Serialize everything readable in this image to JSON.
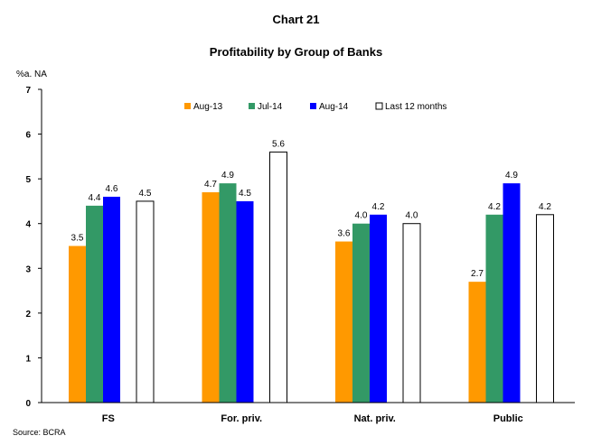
{
  "title": "Chart 21",
  "subtitle": "Profitability by Group of Banks",
  "unit_label": "%a. NA",
  "source": "Source: BCRA",
  "chart_data": {
    "type": "bar",
    "categories": [
      "FS",
      "For. priv.",
      "Nat. priv.",
      "Public"
    ],
    "series": [
      {
        "name": "Aug-13",
        "color": "#ff9900",
        "values": [
          3.5,
          4.7,
          3.6,
          2.7
        ]
      },
      {
        "name": "Jul-14",
        "color": "#339966",
        "values": [
          4.4,
          4.9,
          4.0,
          4.2
        ]
      },
      {
        "name": "Aug-14",
        "color": "#0000ff",
        "values": [
          4.6,
          4.5,
          4.2,
          4.9
        ]
      },
      {
        "name": "Last 12 months",
        "color": "#ffffff",
        "values": [
          4.5,
          5.6,
          4.0,
          4.2
        ]
      }
    ],
    "data_labels": [
      [
        "3.5",
        "4.7",
        "3.6",
        "2.7"
      ],
      [
        "4.4",
        "4.9",
        "4.0",
        "4.2"
      ],
      [
        "4.6",
        "4.5",
        "4.2",
        "4.9"
      ],
      [
        "4.5",
        "5.6",
        "4.0",
        "4.2"
      ]
    ],
    "ylim": [
      0,
      7
    ],
    "yticks": [
      "0",
      "1",
      "2",
      "3",
      "4",
      "5",
      "6",
      "7"
    ],
    "legend_position": "top",
    "grid": false
  }
}
